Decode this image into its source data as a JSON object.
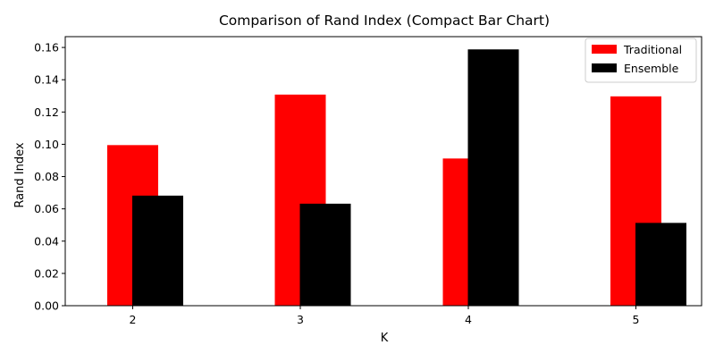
{
  "chart_data": {
    "type": "bar",
    "title": "Comparison of Rand Index (Compact Bar Chart)",
    "xlabel": "K",
    "ylabel": "Rand Index",
    "categories": [
      "2",
      "3",
      "4",
      "5"
    ],
    "series": [
      {
        "name": "Traditional",
        "color": "#ff0000",
        "values": [
          0.0995,
          0.1308,
          0.0912,
          0.1297
        ]
      },
      {
        "name": "Ensemble",
        "color": "#000000",
        "values": [
          0.0682,
          0.0632,
          0.1588,
          0.0513
        ]
      }
    ],
    "ylim": [
      0,
      0.1667
    ],
    "yticks": [
      0.0,
      0.02,
      0.04,
      0.06,
      0.08,
      0.1,
      0.12,
      0.14,
      0.16
    ],
    "ytick_labels": [
      "0.00",
      "0.02",
      "0.04",
      "0.06",
      "0.08",
      "0.10",
      "0.12",
      "0.14",
      "0.16"
    ],
    "grid": false,
    "legend_position": "top-right"
  }
}
